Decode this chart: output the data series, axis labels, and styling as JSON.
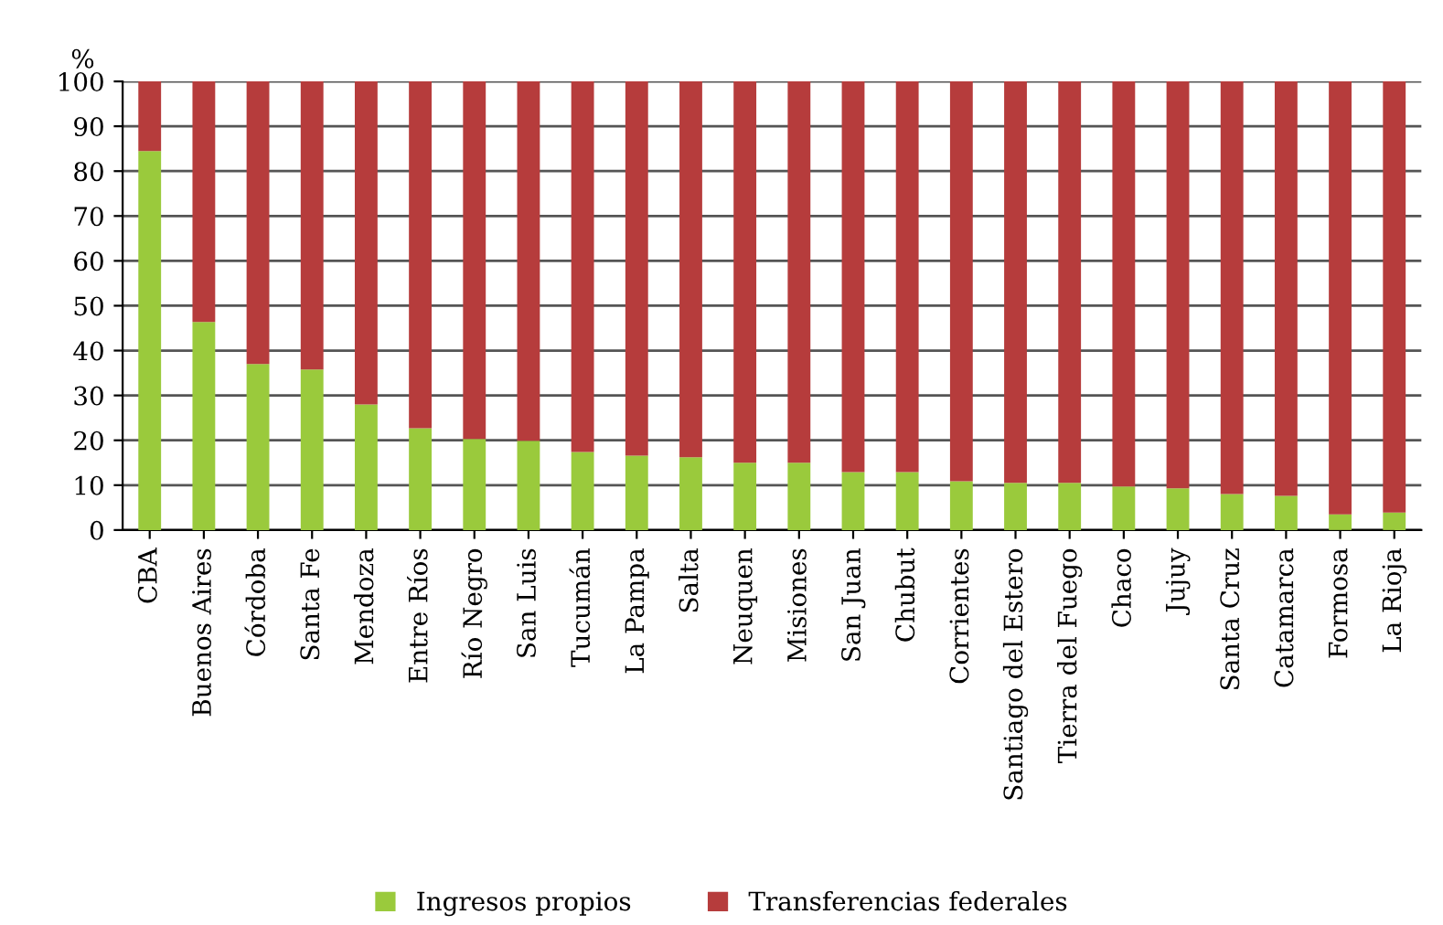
{
  "chart_data": {
    "type": "bar",
    "stacked": true,
    "ylabel": "%",
    "categories": [
      "CBA",
      "Buenos Aires",
      "Córdoba",
      "Santa Fe",
      "Mendoza",
      "Entre Ríos",
      "Río Negro",
      "San Luis",
      "Tucumán",
      "La Pampa",
      "Salta",
      "Neuquen",
      "Misiones",
      "San Juan",
      "Chubut",
      "Corrientes",
      "Santiago del Estero",
      "Tierra del Fuego",
      "Chaco",
      "Jujuy",
      "Santa Cruz",
      "Catamarca",
      "Formosa",
      "La Rioja"
    ],
    "series": [
      {
        "name": "Ingresos propios",
        "color": "#9aca3c",
        "values": [
          84.5,
          46.4,
          37.0,
          35.8,
          28.0,
          22.7,
          20.3,
          19.9,
          17.4,
          16.6,
          16.2,
          15.0,
          15.0,
          12.9,
          12.9,
          10.9,
          10.5,
          10.5,
          9.7,
          9.3,
          8.0,
          7.6,
          3.5,
          3.9
        ]
      },
      {
        "name": "Transferencias federales",
        "color": "#b63c3c",
        "values": [
          15.5,
          53.6,
          63.0,
          64.2,
          72.0,
          77.3,
          79.7,
          80.1,
          82.6,
          83.4,
          83.8,
          85.0,
          85.0,
          87.1,
          87.1,
          89.1,
          89.5,
          89.5,
          90.3,
          90.7,
          92.0,
          92.4,
          96.5,
          96.1
        ]
      }
    ],
    "ylim": [
      0,
      100
    ],
    "yticks": [
      0,
      10,
      20,
      30,
      40,
      50,
      60,
      70,
      80,
      90,
      100
    ],
    "grid": "y",
    "legend": "bottom"
  }
}
